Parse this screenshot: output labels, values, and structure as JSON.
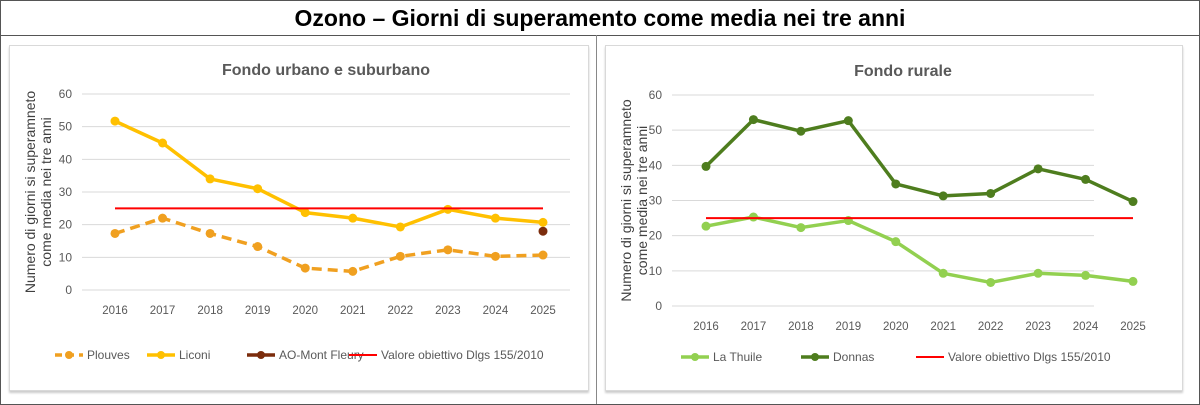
{
  "title": "Ozono – Giorni di superamento come media nei tre anni",
  "chart_data": [
    {
      "type": "line",
      "title": "Fondo urbano e suburbano",
      "ylabel": "Numero di giorni si superamneto come media nei tre anni",
      "xlabel": "",
      "categories": [
        "2016",
        "2017",
        "2018",
        "2019",
        "2020",
        "2021",
        "2022",
        "2023",
        "2024",
        "2025"
      ],
      "ylim": [
        0,
        60
      ],
      "yticks": [
        0,
        10,
        20,
        30,
        40,
        50,
        60
      ],
      "grid": true,
      "legend": "bottom",
      "series": [
        {
          "name": "Plouves",
          "color": "#F0A020",
          "dashed": true,
          "values": [
            17.3,
            22,
            17.3,
            13.3,
            6.7,
            5.7,
            10.3,
            12.3,
            10.3,
            10.7
          ]
        },
        {
          "name": "Liconi",
          "color": "#FFC000",
          "dashed": false,
          "values": [
            51.7,
            45,
            34,
            31,
            23.7,
            22,
            19.3,
            24.7,
            22,
            20.7
          ]
        },
        {
          "name": "AO-Mont Fleury",
          "color": "#7B2C0C",
          "dashed": false,
          "values": [
            null,
            null,
            null,
            null,
            null,
            null,
            null,
            null,
            null,
            18
          ]
        },
        {
          "name": "Valore obiettivo Dlgs 155/2010",
          "color": "#FF0000",
          "dashed": false,
          "nomarker": true,
          "values": [
            25,
            25,
            25,
            25,
            25,
            25,
            25,
            25,
            25,
            25
          ]
        }
      ]
    },
    {
      "type": "line",
      "title": "Fondo rurale",
      "ylabel": "Numero di giorni si superamneto come media nei tre anni",
      "xlabel": "",
      "categories": [
        "2016",
        "2017",
        "2018",
        "2019",
        "2020",
        "2021",
        "2022",
        "2023",
        "2024",
        "2025"
      ],
      "ylim": [
        0,
        60
      ],
      "yticks": [
        0,
        10,
        20,
        30,
        40,
        50,
        60
      ],
      "grid": true,
      "legend": "bottom",
      "series": [
        {
          "name": "La Thuile",
          "color": "#92D050",
          "dashed": false,
          "values": [
            22.7,
            25.3,
            22.3,
            24.3,
            18.3,
            9.3,
            6.7,
            9.3,
            8.7,
            7
          ]
        },
        {
          "name": "Donnas",
          "color": "#4E7D1E",
          "dashed": false,
          "values": [
            39.7,
            53,
            49.7,
            52.7,
            34.7,
            31.3,
            32,
            39,
            36,
            29.7
          ]
        },
        {
          "name": "Valore obiettivo Dlgs 155/2010",
          "color": "#FF0000",
          "dashed": false,
          "nomarker": true,
          "values": [
            25,
            25,
            25,
            25,
            25,
            25,
            25,
            25,
            25,
            25
          ]
        }
      ]
    }
  ]
}
